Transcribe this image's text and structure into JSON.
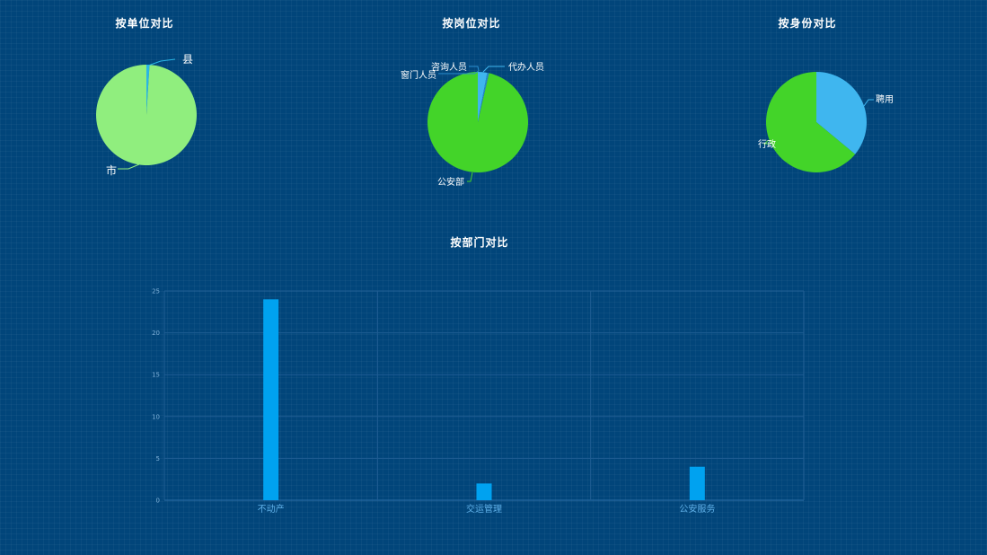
{
  "chart_data": [
    {
      "type": "pie",
      "title": "按单位对比",
      "slices": [
        {
          "label": "县",
          "value": 1,
          "color": "#29b6e6"
        },
        {
          "label": "市",
          "value": 99,
          "color": "#90ee7e"
        }
      ]
    },
    {
      "type": "pie",
      "title": "按岗位对比",
      "slices": [
        {
          "label": "代办人员",
          "value": 3,
          "color": "#3fb6ef"
        },
        {
          "label": "咨询人员",
          "value": 0.3,
          "color": "#2a8fd0"
        },
        {
          "label": "窗门人员",
          "value": 0.3,
          "color": "#2a8fd0"
        },
        {
          "label": "公安部",
          "value": 96.4,
          "color": "#43d429"
        }
      ]
    },
    {
      "type": "pie",
      "title": "按身份对比",
      "slices": [
        {
          "label": "聘用",
          "value": 36,
          "color": "#3fb6ef"
        },
        {
          "label": "行政",
          "value": 64,
          "color": "#43d429"
        }
      ]
    },
    {
      "type": "bar",
      "title": "按部门对比",
      "categories": [
        "不动产",
        "交运管理",
        "公安服务"
      ],
      "values": [
        24,
        2,
        4
      ],
      "ylim": [
        0,
        25
      ],
      "yticks": [
        0,
        5,
        10,
        15,
        20,
        25
      ],
      "grid": true,
      "color": "#00a2f0"
    }
  ]
}
